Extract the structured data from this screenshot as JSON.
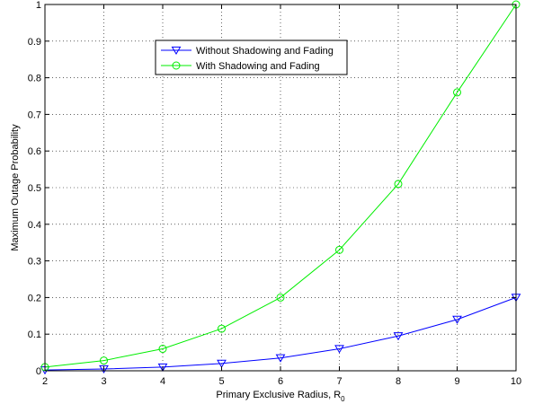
{
  "chart_data": {
    "type": "line",
    "title": "",
    "xlabel": "Primary Exclusive Radius, R",
    "xlabel_subscript": "0",
    "ylabel": "Maximum Outage Probability",
    "x": [
      2,
      3,
      4,
      5,
      6,
      7,
      8,
      9,
      10
    ],
    "xlim": [
      2,
      10
    ],
    "ylim": [
      0,
      1
    ],
    "x_ticks": [
      2,
      3,
      4,
      5,
      6,
      7,
      8,
      9,
      10
    ],
    "y_ticks": [
      0,
      0.1,
      0.2,
      0.3,
      0.4,
      0.5,
      0.6,
      0.7,
      0.8,
      0.9,
      1
    ],
    "grid": true,
    "legend_position": "upper-left-inside",
    "series": [
      {
        "name": "Without Shadowing and Fading",
        "color": "#0000ff",
        "marker": "triangle-down",
        "values": [
          0.002,
          0.005,
          0.01,
          0.02,
          0.035,
          0.06,
          0.095,
          0.14,
          0.2
        ]
      },
      {
        "name": "With Shadowing and Fading",
        "color": "#00ee00",
        "marker": "circle",
        "values": [
          0.01,
          0.028,
          0.06,
          0.115,
          0.2,
          0.33,
          0.51,
          0.76,
          1.0
        ]
      }
    ]
  }
}
